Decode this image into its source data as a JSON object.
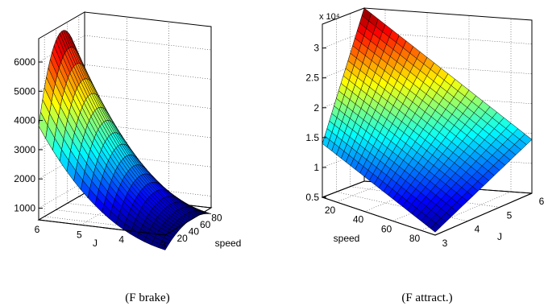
{
  "chart_data": [
    {
      "type": "surface",
      "caption": "(F brake)",
      "axes": {
        "J": {
          "label": "J",
          "range": [
            3,
            6
          ],
          "ticks": [
            3,
            4,
            5,
            6
          ]
        },
        "speed": {
          "label": "speed",
          "range": [
            10,
            90
          ],
          "ticks": [
            20,
            40,
            60,
            80
          ]
        },
        "z": {
          "label": "",
          "range": [
            600,
            6800
          ],
          "ticks": [
            1000,
            2000,
            3000,
            4000,
            5000,
            6000
          ],
          "multiplier_label": ""
        }
      },
      "grid": true,
      "colormap": "jet",
      "corner_values": [
        {
          "J": 6,
          "speed": 10,
          "F": 2400
        },
        {
          "J": 3,
          "speed": 10,
          "F": 600
        },
        {
          "J": 3,
          "speed": 90,
          "F": 1300
        }
      ],
      "peak": {
        "J": 6,
        "speed": 50,
        "F": 6600
      },
      "surface_samples": [
        {
          "J": 6,
          "speed": 10,
          "F": 2400
        },
        {
          "J": 6,
          "speed": 30,
          "F": 5100
        },
        {
          "J": 6,
          "speed": 50,
          "F": 6600
        },
        {
          "J": 6,
          "speed": 70,
          "F": 5300
        },
        {
          "J": 6,
          "speed": 90,
          "F": 2700
        },
        {
          "J": 3,
          "speed": 10,
          "F": 600
        },
        {
          "J": 3,
          "speed": 50,
          "F": 1400
        },
        {
          "J": 3,
          "speed": 90,
          "F": 1300
        }
      ]
    },
    {
      "type": "surface",
      "caption": "(F attract.)",
      "axes": {
        "J": {
          "label": "J",
          "range": [
            3,
            6
          ],
          "ticks": [
            3,
            4,
            5,
            6
          ]
        },
        "speed": {
          "label": "speed",
          "range": [
            10,
            90
          ],
          "ticks": [
            20,
            40,
            60,
            80
          ]
        },
        "z": {
          "label": "",
          "range": [
            5000,
            34000
          ],
          "ticks": [
            0.5,
            1,
            1.5,
            2,
            2.5,
            3
          ],
          "multiplier_label": "x 10⁴"
        }
      },
      "grid": true,
      "colormap": "jet",
      "corner_values": [
        {
          "J": 6,
          "speed": 10,
          "F": 34000
        },
        {
          "J": 3,
          "speed": 10,
          "F": 14000
        },
        {
          "J": 6,
          "speed": 90,
          "F": 14000
        },
        {
          "J": 3,
          "speed": 90,
          "F": 5500
        }
      ],
      "peak": {
        "J": 6,
        "speed": 10,
        "F": 34000
      }
    }
  ]
}
